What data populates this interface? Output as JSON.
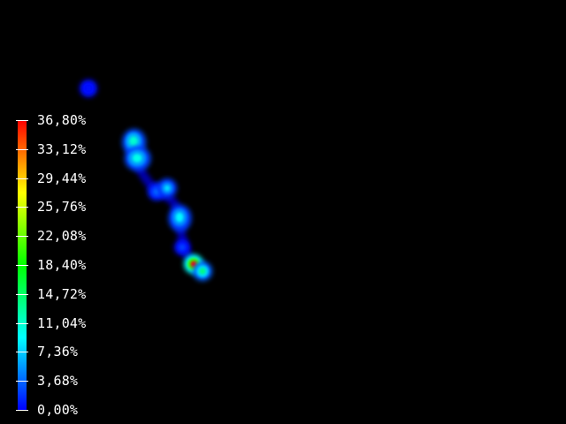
{
  "colormap": {
    "stops": [
      "#0000ff",
      "#00ffff",
      "#00ff00",
      "#ffff00",
      "#ff0000"
    ],
    "background": "#000000",
    "label_color": "#ffffff"
  },
  "legend": {
    "labels": [
      "36,80%",
      "33,12%",
      "29,44%",
      "25,76%",
      "22,08%",
      "18,40%",
      "14,72%",
      "11,04%",
      "7,36%",
      "3,68%",
      "0,00%"
    ],
    "max_value": 36.8,
    "min_value": 0.0
  },
  "field": {
    "hotspots": [
      {
        "value": 0.5
      },
      {
        "value": 11.0
      },
      {
        "value": 10.0
      },
      {
        "value": 4.0
      },
      {
        "value": 8.0
      },
      {
        "value": 9.0
      },
      {
        "value": 2.5
      },
      {
        "value": 36.8
      },
      {
        "value": 14.0
      }
    ]
  }
}
